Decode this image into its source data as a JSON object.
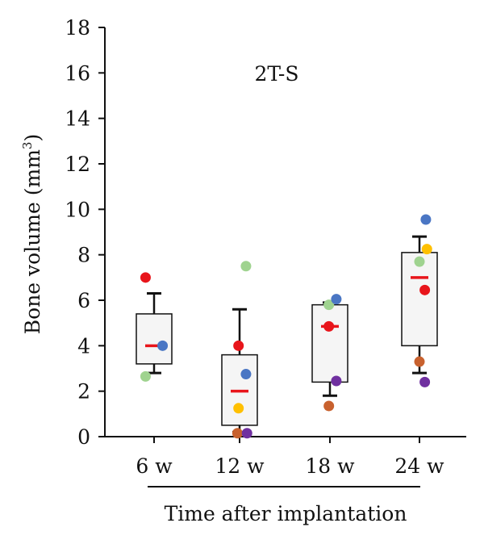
{
  "chart_data": {
    "type": "box",
    "annotation": "2T-S",
    "ylabel_main": "Bone volume (mm",
    "ylabel_sup": "3",
    "ylabel_end": ")",
    "xlabel": "Time after implantation",
    "categories": [
      "6 w",
      "12 w",
      "18 w",
      "24 w"
    ],
    "ylim": [
      0,
      18
    ],
    "yticks": [
      0,
      2,
      4,
      6,
      8,
      10,
      12,
      14,
      16,
      18
    ],
    "ytick_labels": [
      "0",
      "2",
      "4",
      "6",
      "8",
      "10",
      "12",
      "14",
      "16",
      "18"
    ],
    "grid": false,
    "boxes": [
      {
        "q1": 3.2,
        "q3": 5.4,
        "mean": 4.0,
        "whisker_low": 2.8,
        "whisker_high": 6.3
      },
      {
        "q1": 0.5,
        "q3": 3.6,
        "mean": 2.0,
        "whisker_low": 0.2,
        "whisker_high": 5.6
      },
      {
        "q1": 2.4,
        "q3": 5.8,
        "mean": 4.85,
        "whisker_low": 1.8,
        "whisker_high": 5.9
      },
      {
        "q1": 4.0,
        "q3": 8.1,
        "mean": 7.0,
        "whisker_low": 2.8,
        "whisker_high": 8.8
      }
    ],
    "points": [
      [
        {
          "y": 7.0,
          "color": "#e8151b",
          "offset": -0.4
        },
        {
          "y": 4.0,
          "color": "#4a76c4",
          "offset": 0.4
        },
        {
          "y": 2.65,
          "color": "#9fd38f",
          "offset": -0.4
        }
      ],
      [
        {
          "y": 7.5,
          "color": "#9fd38f",
          "offset": 0.3
        },
        {
          "y": 4.0,
          "color": "#e8151b",
          "offset": -0.05
        },
        {
          "y": 2.75,
          "color": "#4a76c4",
          "offset": 0.3
        },
        {
          "y": 1.25,
          "color": "#ffc000",
          "offset": -0.05
        },
        {
          "y": 0.15,
          "color": "#c8612e",
          "offset": -0.1
        },
        {
          "y": 0.15,
          "color": "#7030a0",
          "offset": 0.35
        }
      ],
      [
        {
          "y": 5.8,
          "color": "#9fd38f",
          "offset": -0.05
        },
        {
          "y": 6.05,
          "color": "#4a76c4",
          "offset": 0.3
        },
        {
          "y": 4.85,
          "color": "#e8151b",
          "offset": -0.05
        },
        {
          "y": 2.45,
          "color": "#7030a0",
          "offset": 0.3
        },
        {
          "y": 1.35,
          "color": "#c8612e",
          "offset": -0.05
        }
      ],
      [
        {
          "y": 9.55,
          "color": "#4a76c4",
          "offset": 0.3
        },
        {
          "y": 8.25,
          "color": "#ffc000",
          "offset": 0.35
        },
        {
          "y": 7.7,
          "color": "#9fd38f",
          "offset": 0.0
        },
        {
          "y": 6.45,
          "color": "#e8151b",
          "offset": 0.25
        },
        {
          "y": 3.3,
          "color": "#c8612e",
          "offset": 0.0
        },
        {
          "y": 2.4,
          "color": "#7030a0",
          "offset": 0.25
        }
      ]
    ],
    "colors": {
      "axis": "#111111",
      "box_fill": "#f5f5f5",
      "box_stroke": "#111111",
      "mean": "#e8151b"
    }
  }
}
